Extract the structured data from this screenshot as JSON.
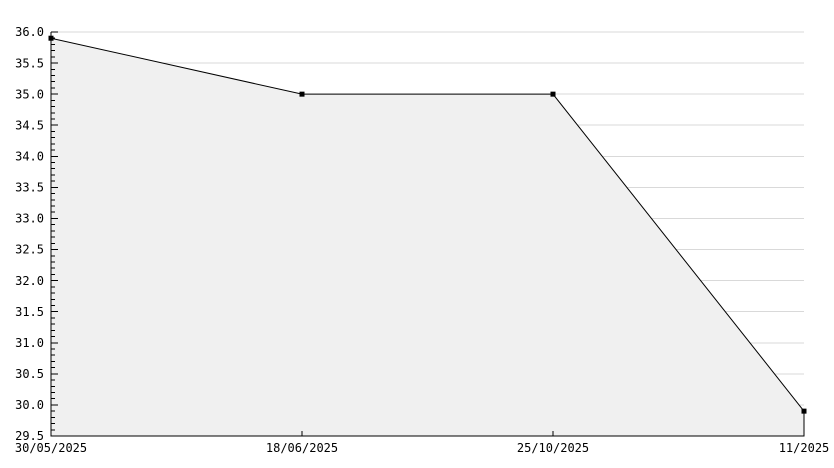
{
  "chart_data": {
    "type": "area",
    "title": "",
    "xlabel": "",
    "ylabel": "",
    "categories": [
      "30/05/2025",
      "18/06/2025",
      "25/10/2025",
      "11/2025"
    ],
    "values": [
      35.9,
      35.0,
      35.0,
      29.9
    ],
    "ylim": [
      29.5,
      36.0
    ],
    "ytick_step": 0.5,
    "ytick_minor_step": 0.1,
    "ytick_labels": [
      "36.0",
      "35.5",
      "35.0",
      "34.5",
      "34.0",
      "33.5",
      "33.0",
      "32.5",
      "32.0",
      "31.5",
      "31.0",
      "30.5",
      "30.0",
      "29.5"
    ],
    "grid": "horizontal",
    "legend_position": "none",
    "marker": "square",
    "colors": {
      "line": "#000000",
      "marker": "#000000",
      "fill": "#f0f0f0",
      "grid": "#d9d9d9",
      "axis": "#000000",
      "label": "#000000",
      "background": "#ffffff"
    }
  }
}
